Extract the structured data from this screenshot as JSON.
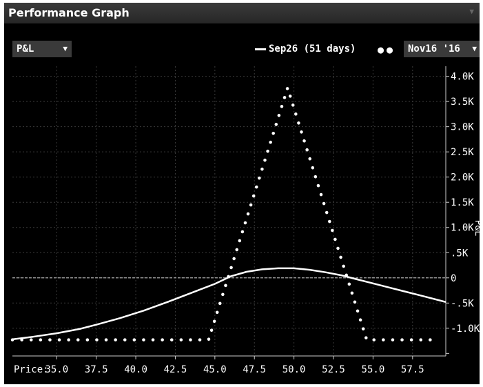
{
  "panel": {
    "title": "Performance Graph",
    "collapse_icon": "triangle-down-icon"
  },
  "controls": {
    "metric": "P&L",
    "date": "Nov16 '16",
    "dropdown_icon": "triangle-down-icon"
  },
  "chart_data": {
    "type": "line",
    "title": "",
    "xlabel": "Price:",
    "ylabel": "P&L",
    "xlim": [
      32.2,
      59.6
    ],
    "ylim": [
      -1550,
      4200
    ],
    "x_ticks": [
      35.0,
      37.5,
      40.0,
      42.5,
      45.0,
      47.5,
      50.0,
      52.5,
      55.0,
      57.5
    ],
    "x_tick_labels": [
      "35.0",
      "37.5",
      "40.0",
      "42.5",
      "45.0",
      "47.5",
      "50.0",
      "52.5",
      "55.0",
      "57.5"
    ],
    "y_ticks": [
      4000,
      3500,
      3000,
      2500,
      2000,
      1500,
      1000,
      500,
      0,
      -500,
      -1000
    ],
    "y_tick_labels": [
      "4.0K",
      "3.5K",
      "3.0K",
      "2.5K",
      "2.0K",
      "1.5K",
      "1.0K",
      ".5K",
      "0",
      "-.5K",
      "-1.0K"
    ],
    "grid": true,
    "legend_position": "top-right",
    "zero_line": true,
    "series": [
      {
        "name": "Sep26 (51 days)",
        "style": "solid",
        "color": "#ffffff",
        "x": [
          32.2,
          33.5,
          35.0,
          36.5,
          37.5,
          39.0,
          40.5,
          42.0,
          43.5,
          45.0,
          46.0,
          47.0,
          48.0,
          49.0,
          50.0,
          51.0,
          52.0,
          53.0,
          54.0,
          55.0,
          56.0,
          57.0,
          58.0,
          59.6
        ],
        "y": [
          -1220,
          -1170,
          -1100,
          -1010,
          -930,
          -800,
          -650,
          -480,
          -300,
          -120,
          30,
          120,
          170,
          190,
          190,
          160,
          110,
          50,
          -30,
          -110,
          -190,
          -270,
          -350,
          -480
        ]
      },
      {
        "name": "Nov16 '16",
        "style": "dotted",
        "color": "#ffffff",
        "x": [
          32.2,
          44.6,
          49.6,
          54.6,
          59.0
        ],
        "y": [
          -1230,
          -1230,
          3770,
          -1230,
          -1230
        ]
      }
    ]
  }
}
